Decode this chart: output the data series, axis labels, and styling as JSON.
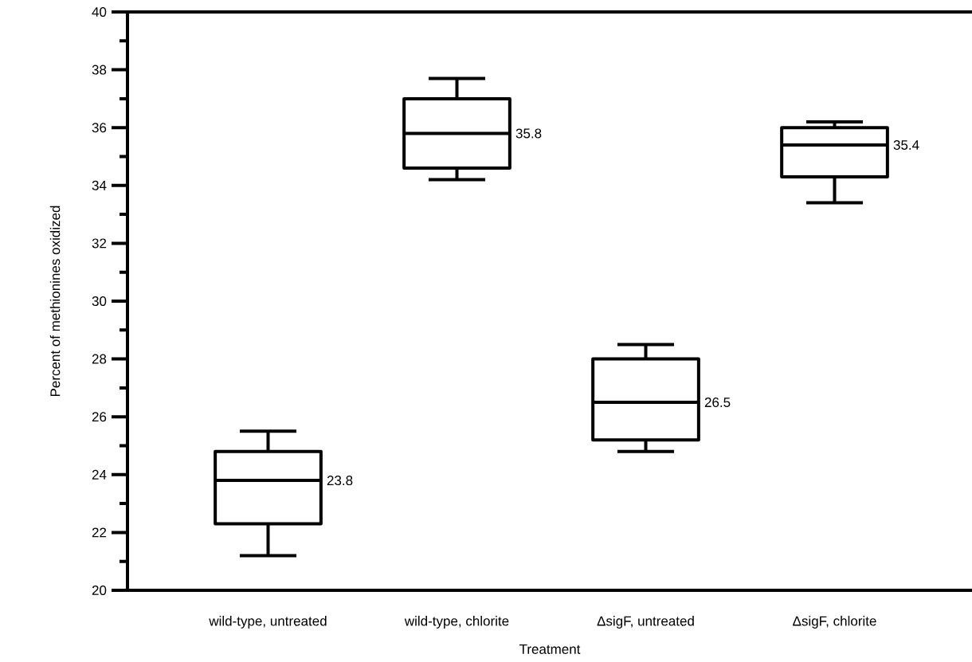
{
  "chart_data": {
    "type": "box",
    "xlabel": "Treatment",
    "ylabel": "Percent of methionines oxidized",
    "color": "#000000",
    "categories": [
      "wild-type, untreated",
      "wild-type, chlorite",
      "ΔsigF, untreated",
      "ΔsigF, chlorite"
    ],
    "boxes": [
      {
        "low": 21.2,
        "q1": 22.3,
        "median": 23.8,
        "q3": 24.8,
        "high": 25.5
      },
      {
        "low": 34.2,
        "q1": 34.6,
        "median": 35.8,
        "q3": 37.0,
        "high": 37.7
      },
      {
        "low": 24.8,
        "q1": 25.2,
        "median": 26.5,
        "q3": 28.0,
        "high": 28.5
      },
      {
        "low": 33.4,
        "q1": 34.3,
        "median": 35.4,
        "q3": 36.0,
        "high": 36.2
      }
    ],
    "ylim": [
      20,
      40
    ],
    "yticks": [
      20,
      22,
      24,
      26,
      28,
      30,
      32,
      34,
      36,
      38,
      40
    ],
    "annotations": [
      "23.8",
      "35.8",
      "26.5",
      "35.4"
    ]
  }
}
